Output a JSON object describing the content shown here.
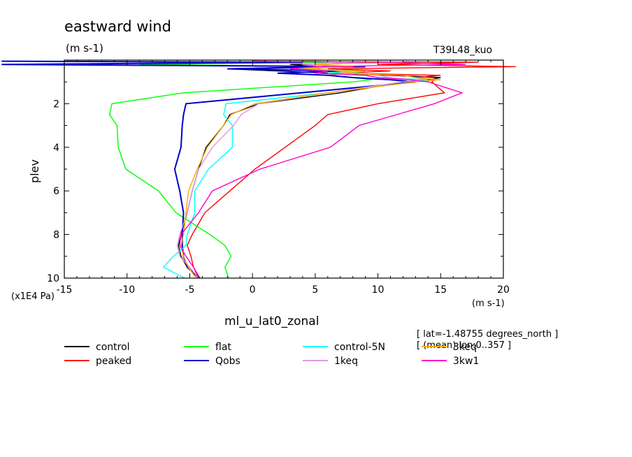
{
  "header": {
    "title": "eastward wind",
    "units": "(m s-1)",
    "run_id": "T39L48_kuo"
  },
  "footer": {
    "variable": "ml_u_lat0_zonal",
    "meta_line1": "[ lat=-1.48755 degrees_north ]",
    "meta_line2": "[ (mean) lon:0..357 ]"
  },
  "chart_data": {
    "type": "line",
    "title": "eastward wind",
    "xlabel": "(m s-1)",
    "ylabel": "plev",
    "y_scale_label": "(x1E4 Pa)",
    "xlim": [
      -15,
      20
    ],
    "ylim": [
      10,
      0
    ],
    "x_ticks": [
      -15,
      -10,
      -5,
      0,
      5,
      10,
      15,
      20
    ],
    "x_tick_labels": [
      "-15",
      "-10",
      "-5",
      "0",
      "5",
      "10",
      "15",
      "20"
    ],
    "y_ticks": [
      2,
      4,
      6,
      8,
      10
    ],
    "y_tick_labels": [
      "2",
      "4",
      "6",
      "8",
      "10"
    ],
    "y": [
      0.05,
      0.1,
      0.2,
      0.3,
      0.4,
      0.5,
      0.6,
      0.7,
      0.8,
      0.9,
      1.0,
      1.5,
      2.0,
      2.5,
      3.0,
      4.0,
      5.0,
      6.0,
      7.0,
      8.0,
      8.5,
      9.0,
      9.5,
      10.0
    ],
    "series": [
      {
        "name": "control",
        "color": "#000000",
        "x": [
          0,
          12,
          3,
          5,
          -2,
          2,
          6,
          11,
          15,
          14,
          12,
          7,
          0.5,
          -1.8,
          -2.3,
          -3.7,
          -4.3,
          -4.8,
          -5.2,
          -5.7,
          -5.9,
          -5.7,
          -5.2,
          -4.3
        ]
      },
      {
        "name": "peaked",
        "color": "#ff0000",
        "x": [
          0,
          18,
          10,
          21,
          6,
          11,
          7,
          15,
          13,
          14.5,
          14.3,
          15.3,
          10,
          6,
          5,
          2.6,
          0.2,
          -1.8,
          -3.8,
          -4.8,
          -5.2,
          -4.9,
          -4.7,
          -4.2
        ]
      },
      {
        "name": "flat",
        "color": "#00ff00",
        "x": [
          -20,
          6,
          -9,
          7,
          3,
          9,
          8,
          6,
          8,
          9.5,
          8,
          -5.5,
          -11.2,
          -11.4,
          -10.8,
          -10.7,
          -10.1,
          -7.5,
          -6.1,
          -3.4,
          -2.2,
          -1.7,
          -2.2,
          -1.9
        ]
      },
      {
        "name": "Qobs",
        "color": "#0000cc",
        "x": [
          -20,
          4,
          -20,
          9,
          -2,
          7,
          2,
          6,
          8,
          11,
          13,
          3.9,
          -5.3,
          -5.5,
          -5.6,
          -5.7,
          -6.2,
          -5.8,
          -5.5,
          -5.6,
          -5.6,
          -5.5,
          -5.2,
          -4.2
        ]
      },
      {
        "name": "control-5N",
        "color": "#00ffff",
        "x": [
          0,
          10,
          5,
          7,
          3,
          8,
          6,
          9,
          10,
          14,
          12,
          6,
          -2.1,
          -2.3,
          -1.6,
          -1.6,
          -3.5,
          -4.6,
          -4.6,
          -5.2,
          -5.3,
          -6.3,
          -7.1,
          -5.4
        ]
      },
      {
        "name": "1keq",
        "color": "#dd99dd",
        "x": [
          0,
          11,
          4,
          6,
          5,
          7,
          8,
          10,
          11,
          13,
          12,
          6,
          0.5,
          -0.9,
          -1.5,
          -3.2,
          -4.3,
          -4.8,
          -5.2,
          -5.8,
          -6.0,
          -5.8,
          -5.0,
          -4.3
        ]
      },
      {
        "name": "3keq",
        "color": "#ffaa00",
        "x": [
          0,
          12,
          5,
          8,
          4,
          9,
          7,
          12,
          13,
          15,
          13,
          6,
          0.2,
          -1.7,
          -2.3,
          -3.6,
          -4.4,
          -5.1,
          -5.3,
          -5.5,
          -5.7,
          -5.5,
          -5.1,
          -4.5
        ]
      },
      {
        "name": "3kw1",
        "color": "#ff00cc",
        "x": [
          0,
          10,
          17,
          5,
          3,
          6,
          5,
          9,
          10,
          12.5,
          14,
          16.7,
          14.5,
          11.5,
          8.5,
          6.2,
          0.6,
          -3.2,
          -4.3,
          -5.7,
          -5.8,
          -5.3,
          -4.7,
          -4.3
        ]
      }
    ]
  }
}
